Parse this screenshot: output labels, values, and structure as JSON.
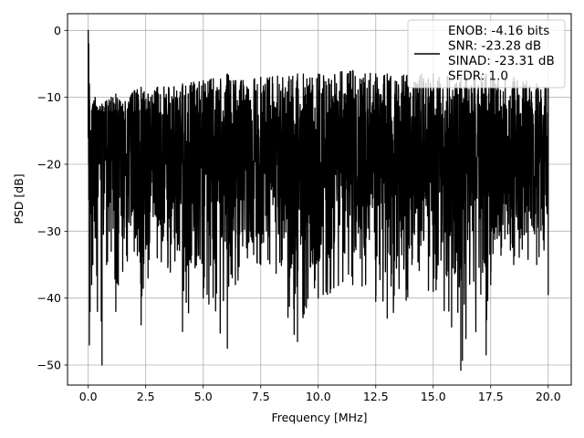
{
  "chart_data": {
    "type": "line",
    "xlabel": "Frequency [MHz]",
    "ylabel": "PSD [dB]",
    "xlim": [
      -0.9,
      21.0
    ],
    "ylim": [
      -53.0,
      2.5
    ],
    "xticks": [
      0.0,
      2.5,
      5.0,
      7.5,
      10.0,
      12.5,
      15.0,
      17.5,
      20.0
    ],
    "xtick_labels": [
      "0.0",
      "2.5",
      "5.0",
      "7.5",
      "10.0",
      "12.5",
      "15.0",
      "17.5",
      "20.0"
    ],
    "yticks": [
      0,
      -10,
      -20,
      -30,
      -40,
      -50
    ],
    "ytick_labels": [
      "0",
      "−10",
      "−20",
      "−30",
      "−40",
      "−50"
    ],
    "grid": true,
    "legend": {
      "placement": "top-right",
      "entries": [
        "ENOB: -4.16 bits",
        "SNR: -23.28 dB",
        "SINAD: -23.31 dB",
        "SFDR: 1.0"
      ]
    },
    "series": [
      {
        "color": "#000000",
        "x": [
          0.0,
          0.02,
          0.05,
          0.08,
          0.1,
          0.15,
          0.2,
          0.3,
          0.4,
          0.6,
          0.8,
          1.0,
          1.2,
          1.5,
          2.0,
          2.3,
          2.6,
          3.0,
          4.1,
          5.0,
          6.05,
          6.4,
          7.5,
          9.1,
          10.0,
          11.5,
          12.5,
          13.0,
          15.0,
          16.2,
          17.3,
          17.5,
          18.5,
          19.5,
          20.0
        ],
        "y_envelope_max": [
          0.0,
          -2.0,
          -8.0,
          -18.0,
          -15.0,
          -12.0,
          -11.0,
          -10.0,
          -11.5,
          -11.0,
          -10.5,
          -10.0,
          -9.5,
          -11.0,
          -9.0,
          -8.5,
          -9.5,
          -8.5,
          -8.0,
          -7.5,
          -6.5,
          -7.5,
          -7.0,
          -6.5,
          -6.5,
          -6.0,
          -6.5,
          -6.5,
          -6.5,
          -7.0,
          -6.5,
          -7.0,
          -7.0,
          -8.0,
          -8.5
        ],
        "y_envelope_min": [
          -16.0,
          -20.0,
          -47.0,
          -42.0,
          -24.0,
          -38.0,
          -35.0,
          -31.0,
          -42.0,
          -50.0,
          -35.0,
          -33.0,
          -42.0,
          -36.0,
          -33.0,
          -44.0,
          -37.0,
          -34.0,
          -45.0,
          -40.0,
          -47.5,
          -38.0,
          -35.0,
          -46.5,
          -40.0,
          -38.0,
          -40.5,
          -43.0,
          -39.0,
          -50.8,
          -48.5,
          -38.0,
          -35.0,
          -35.0,
          -39.5
        ],
        "y_band_typical": [
          -12.0,
          -27.0
        ]
      }
    ]
  }
}
